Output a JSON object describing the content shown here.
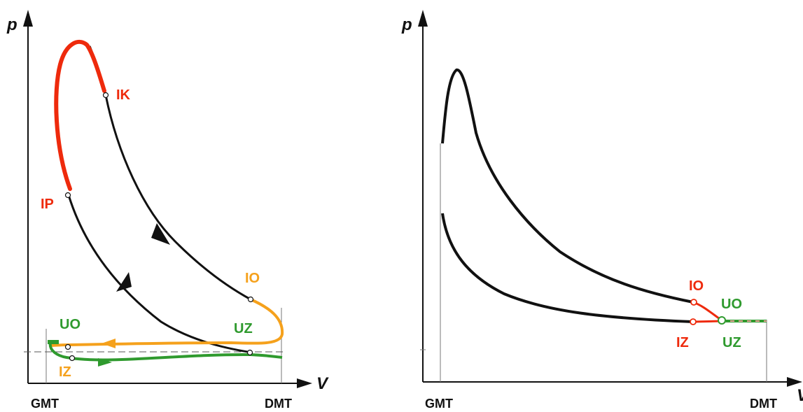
{
  "colors": {
    "black": "#111111",
    "red": "#ee2a0c",
    "orange": "#f5a11c",
    "green": "#2f9a2e",
    "pink": "#f0a0a0",
    "gray": "#777777"
  },
  "left": {
    "y_axis_label": "p",
    "x_axis_label": "V",
    "x_ticks": [
      "GMT",
      "DMT"
    ],
    "labels": {
      "ik": "IK",
      "ip": "IP",
      "io": "IO",
      "uz": "UZ",
      "uo": "UO",
      "iz": "IZ"
    }
  },
  "right": {
    "y_axis_label": "p",
    "x_axis_label": "V",
    "x_ticks": [
      "GMT",
      "DMT"
    ],
    "labels": {
      "io": "IO",
      "uo": "UO",
      "iz": "IZ",
      "uz": "UZ"
    }
  }
}
